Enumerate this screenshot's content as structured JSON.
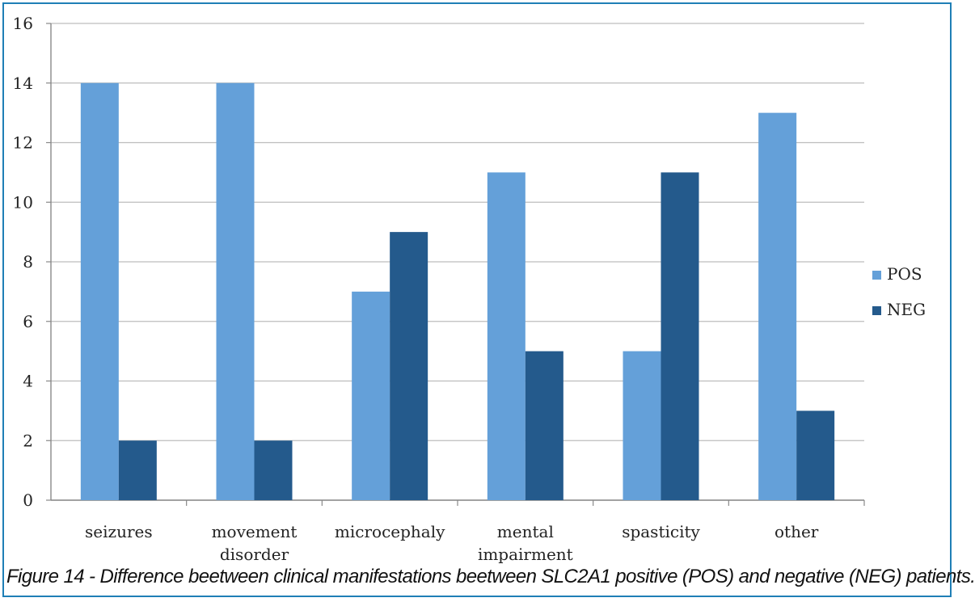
{
  "colors": {
    "pos": "#64a0d9",
    "neg": "#245a8c",
    "frame": "#1f7fb6",
    "grid": "#bdbdbd"
  },
  "caption": "Figure 14 - Difference beetween clinical manifestations beetween SLC2A1 positive (POS) and negative (NEG) patients.",
  "chart_data": {
    "type": "bar",
    "title": "",
    "xlabel": "",
    "ylabel": "",
    "ylim": [
      0,
      16
    ],
    "yticks": [
      0,
      2,
      4,
      6,
      8,
      10,
      12,
      14,
      16
    ],
    "grid": true,
    "legend_position": "right",
    "categories": [
      [
        "seizures"
      ],
      [
        "movement",
        "disorder"
      ],
      [
        "microcephaly"
      ],
      [
        "mental",
        "impairment"
      ],
      [
        "spasticity"
      ],
      [
        "other"
      ]
    ],
    "series": [
      {
        "name": "POS",
        "values": [
          14,
          14,
          7,
          11,
          5,
          13
        ]
      },
      {
        "name": "NEG",
        "values": [
          2,
          2,
          9,
          5,
          11,
          3
        ]
      }
    ]
  }
}
